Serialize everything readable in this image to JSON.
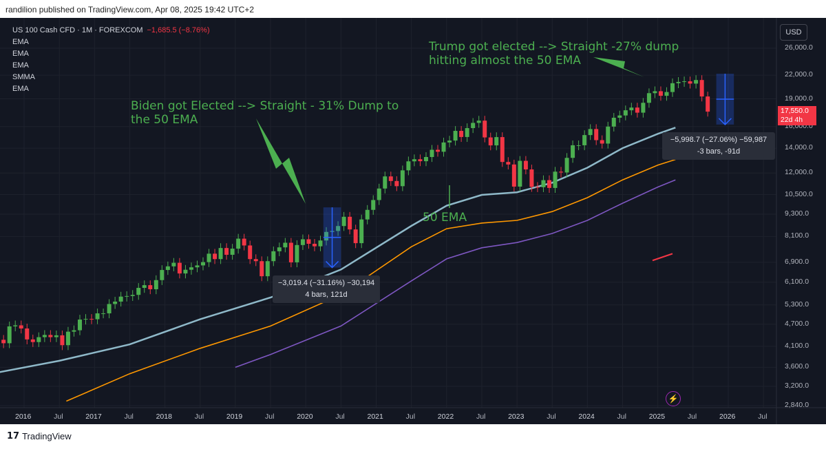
{
  "header": {
    "publisher": "randilion published on TradingView.com, Apr 08, 2025 19:42 UTC+2"
  },
  "footer": {
    "brand": "TradingView",
    "logo_icon": "tradingview-logo-icon"
  },
  "legend": {
    "symbol": "US 100 Cash CFD · 1M · FOREXCOM",
    "change": "−1,685.5 (−8.76%)",
    "indicators": [
      "EMA",
      "EMA",
      "EMA",
      "SMMA",
      "EMA"
    ]
  },
  "annotations": {
    "trump": [
      "Trump got elected --> Straight -27% dump",
      "hitting almost the 50 EMA"
    ],
    "biden": [
      "Biden got Elected --> Straight - 31% Dump to",
      "the 50 EMA"
    ],
    "ema50": "50 EMA"
  },
  "measure_2020": {
    "line1": "−3,019.4 (−31.16%) −30,194",
    "line2": "4 bars, 121d"
  },
  "measure_2025": {
    "line1": "−5,998.7 (−27.06%) −59,987",
    "line2": "-3 bars, -91d"
  },
  "price_axis": {
    "currency": "USD",
    "last_price": "17,550.0",
    "countdown": "22d 4h"
  },
  "colors": {
    "background": "#131722",
    "up": "#4caf50",
    "down": "#f23645",
    "ema50": "#8fb9c9",
    "ema_orange": "#ff9800",
    "smma_purple": "#7e57c2",
    "annotation": "#4caf50",
    "measure": "#2962ff"
  },
  "chart_data": {
    "type": "candlestick",
    "title": "US 100 Cash CFD · 1M · FOREXCOM",
    "y_scale": "log",
    "ylim": [
      2840,
      28000
    ],
    "y_ticks": [
      26000,
      22000,
      19000,
      16000,
      14000,
      12000,
      10500,
      9300,
      8100,
      6900,
      6100,
      5300,
      4700,
      4100,
      3600,
      3200,
      2840
    ],
    "y_tick_labels": [
      "26,000.0",
      "22,000.0",
      "19,000.0",
      "16,000.0",
      "14,000.0",
      "12,000.0",
      "10,500.0",
      "9,300.0",
      "8,100.0",
      "6,900.0",
      "6,100.0",
      "5,300.0",
      "4,700.0",
      "4,100.0",
      "3,600.0",
      "3,200.0",
      "2,840.0"
    ],
    "x_ticks": [
      {
        "label": "2016",
        "t": 2016.0,
        "year": true
      },
      {
        "label": "Jul",
        "t": 2016.5,
        "year": false
      },
      {
        "label": "2017",
        "t": 2017.0,
        "year": true
      },
      {
        "label": "Jul",
        "t": 2017.5,
        "year": false
      },
      {
        "label": "2018",
        "t": 2018.0,
        "year": true
      },
      {
        "label": "Jul",
        "t": 2018.5,
        "year": false
      },
      {
        "label": "2019",
        "t": 2019.0,
        "year": true
      },
      {
        "label": "Jul",
        "t": 2019.5,
        "year": false
      },
      {
        "label": "2020",
        "t": 2020.0,
        "year": true
      },
      {
        "label": "Jul",
        "t": 2020.5,
        "year": false
      },
      {
        "label": "2021",
        "t": 2021.0,
        "year": true
      },
      {
        "label": "Jul",
        "t": 2021.5,
        "year": false
      },
      {
        "label": "2022",
        "t": 2022.0,
        "year": true
      },
      {
        "label": "Jul",
        "t": 2022.5,
        "year": false
      },
      {
        "label": "2023",
        "t": 2023.0,
        "year": true
      },
      {
        "label": "Jul",
        "t": 2023.5,
        "year": false
      },
      {
        "label": "2024",
        "t": 2024.0,
        "year": true
      },
      {
        "label": "Jul",
        "t": 2024.5,
        "year": false
      },
      {
        "label": "2025",
        "t": 2025.0,
        "year": true
      },
      {
        "label": "Jul",
        "t": 2025.5,
        "year": false
      },
      {
        "label": "2026",
        "t": 2026.0,
        "year": true
      },
      {
        "label": "Jul",
        "t": 2026.5,
        "year": false
      }
    ],
    "start_date": "2015-07",
    "monthly_close": [
      4590,
      4270,
      4180,
      4640,
      4670,
      4580,
      4280,
      4210,
      4340,
      4400,
      4340,
      4390,
      4130,
      4490,
      4530,
      4840,
      4860,
      4850,
      5030,
      5030,
      5330,
      5410,
      5580,
      5600,
      5640,
      5890,
      5990,
      5840,
      6180,
      6580,
      6730,
      6880,
      6440,
      6590,
      6690,
      6770,
      6910,
      7280,
      7040,
      7540,
      7230,
      7510,
      7990,
      7660,
      7040,
      6950,
      6330,
      6950,
      7390,
      7570,
      7790,
      6900,
      7680,
      7960,
      7740,
      7620,
      7900,
      8330,
      8380,
      8640,
      9150,
      8460,
      7770,
      9000,
      9550,
      10150,
      10900,
      11750,
      11420,
      11060,
      12200,
      12900,
      13070,
      12910,
      13250,
      13860,
      13690,
      14500,
      14670,
      15580,
      15000,
      15850,
      16370,
      16600,
      14960,
      14240,
      14990,
      12850,
      12650,
      11030,
      12940,
      12270,
      11010,
      10990,
      11480,
      10940,
      12100,
      12040,
      13180,
      14250,
      14250,
      15180,
      15760,
      14710,
      14400,
      16000,
      16900,
      17140,
      17700,
      18000,
      17440,
      18540,
      19680,
      19920,
      19360,
      19820,
      20930,
      21100,
      21180,
      20880,
      21350,
      19280,
      17550
    ],
    "monthly_open_first": 4400,
    "ema50": {
      "name": "50 EMA",
      "points": [
        [
          2015.6,
          3480
        ],
        [
          2016.5,
          3750
        ],
        [
          2017.5,
          4150
        ],
        [
          2018.5,
          4850
        ],
        [
          2019.5,
          5550
        ],
        [
          2020.5,
          6600
        ],
        [
          2021.5,
          8650
        ],
        [
          2022.0,
          9800
        ],
        [
          2022.5,
          10480
        ],
        [
          2023.0,
          10650
        ],
        [
          2023.5,
          11300
        ],
        [
          2024.0,
          12400
        ],
        [
          2024.5,
          14000
        ],
        [
          2025.0,
          15300
        ],
        [
          2025.25,
          15900
        ]
      ]
    },
    "ema_orange": {
      "points": [
        [
          2016.6,
          2920
        ],
        [
          2017.5,
          3460
        ],
        [
          2018.5,
          4050
        ],
        [
          2019.5,
          4650
        ],
        [
          2020.5,
          5650
        ],
        [
          2021.5,
          7600
        ],
        [
          2022.0,
          8500
        ],
        [
          2022.5,
          8800
        ],
        [
          2023.0,
          8950
        ],
        [
          2023.5,
          9450
        ],
        [
          2024.0,
          10300
        ],
        [
          2024.5,
          11500
        ],
        [
          2025.0,
          12600
        ],
        [
          2025.25,
          13050
        ]
      ]
    },
    "smma_purple": {
      "points": [
        [
          2019.0,
          3600
        ],
        [
          2019.5,
          3900
        ],
        [
          2020.5,
          4650
        ],
        [
          2021.5,
          6150
        ],
        [
          2022.0,
          7050
        ],
        [
          2022.5,
          7550
        ],
        [
          2023.0,
          7800
        ],
        [
          2023.5,
          8250
        ],
        [
          2024.0,
          8950
        ],
        [
          2024.5,
          9950
        ],
        [
          2025.0,
          11000
        ],
        [
          2025.25,
          11500
        ]
      ]
    },
    "measure_2020": {
      "from_price": 9700,
      "to_price": 6680,
      "change": -3019.4,
      "percent": -31.16,
      "bars": 4,
      "days": 121
    },
    "measure_2025": {
      "from_price": 22200,
      "to_price": 16200,
      "change": -5998.7,
      "percent": -27.06,
      "bars": -3,
      "days": -91
    }
  }
}
